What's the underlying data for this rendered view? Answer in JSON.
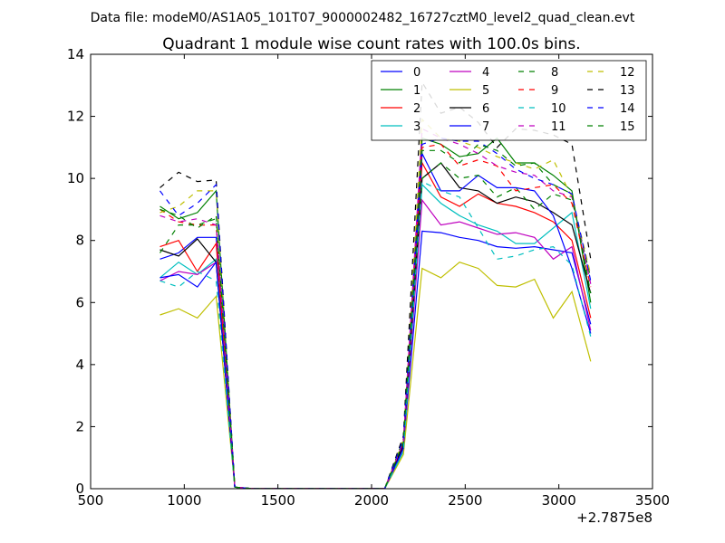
{
  "chart_data": {
    "type": "line",
    "suptitle": "Data file: modeM0/AS1A05_101T07_9000002482_16727cztM0_level2_quad_clean.evt",
    "title": "Quadrant 1 module wise count rates with 100.0s bins.",
    "xlabel": "",
    "ylabel": "",
    "x_offset_label": "+2.7875e8",
    "xlim": [
      500,
      3500
    ],
    "ylim": [
      0,
      14
    ],
    "xticks": [
      500,
      1000,
      1500,
      2000,
      2500,
      3000,
      3500
    ],
    "yticks": [
      0,
      2,
      4,
      6,
      8,
      10,
      12,
      14
    ],
    "grid": false,
    "legend_position": "top-right",
    "legend_columns": 4,
    "x": [
      870,
      970,
      1070,
      1170,
      1270,
      1370,
      1470,
      1570,
      1670,
      1770,
      1870,
      1970,
      2070,
      2170,
      2270,
      2370,
      2470,
      2570,
      2670,
      2770,
      2870,
      2970,
      3070,
      3170
    ],
    "series": [
      {
        "name": "0",
        "color": "#0000ff",
        "style": "solid",
        "values": [
          7.4,
          7.6,
          8.1,
          8.1,
          0.05,
          0,
          0,
          0,
          0,
          0,
          0,
          0,
          0,
          1.3,
          8.3,
          8.25,
          8.1,
          8.0,
          7.8,
          7.75,
          7.8,
          7.7,
          7.6,
          5.3
        ]
      },
      {
        "name": "1",
        "color": "#008000",
        "style": "solid",
        "values": [
          9.1,
          8.7,
          8.9,
          9.6,
          0.05,
          0,
          0,
          0,
          0,
          0,
          0,
          0,
          0,
          1.4,
          11.3,
          11.1,
          10.7,
          10.8,
          11.3,
          10.5,
          10.5,
          10.1,
          9.6,
          6.0
        ]
      },
      {
        "name": "2",
        "color": "#ff0000",
        "style": "solid",
        "values": [
          7.8,
          8.0,
          7.0,
          7.9,
          0.05,
          0,
          0,
          0,
          0,
          0,
          0,
          0,
          0,
          1.5,
          10.5,
          9.4,
          9.1,
          9.5,
          9.2,
          9.1,
          8.9,
          8.6,
          8.0,
          5.5
        ]
      },
      {
        "name": "3",
        "color": "#00bfbf",
        "style": "solid",
        "values": [
          6.8,
          7.3,
          6.9,
          7.4,
          0.05,
          0,
          0,
          0,
          0,
          0,
          0,
          0,
          0,
          1.2,
          9.8,
          9.2,
          8.8,
          8.5,
          8.3,
          7.9,
          7.9,
          8.4,
          8.9,
          5.8
        ]
      },
      {
        "name": "4",
        "color": "#bf00bf",
        "style": "solid",
        "values": [
          6.7,
          7.0,
          6.9,
          7.3,
          0.05,
          0,
          0,
          0,
          0,
          0,
          0,
          0,
          0,
          1.3,
          9.3,
          8.5,
          8.6,
          8.4,
          8.2,
          8.25,
          8.1,
          7.4,
          7.8,
          5.1
        ]
      },
      {
        "name": "5",
        "color": "#bfbf00",
        "style": "solid",
        "values": [
          5.6,
          5.8,
          5.5,
          6.2,
          0.05,
          0,
          0,
          0,
          0,
          0,
          0,
          0,
          0,
          1.1,
          7.1,
          6.8,
          7.3,
          7.1,
          6.55,
          6.5,
          6.75,
          5.5,
          6.35,
          4.1
        ]
      },
      {
        "name": "6",
        "color": "#000000",
        "style": "solid",
        "values": [
          7.7,
          7.5,
          8.05,
          7.3,
          0.05,
          0,
          0,
          0,
          0,
          0,
          0,
          0,
          0,
          1.4,
          10.0,
          10.5,
          9.7,
          9.6,
          9.2,
          9.4,
          9.25,
          8.9,
          8.5,
          6.3
        ]
      },
      {
        "name": "7",
        "color": "#0000ff",
        "style": "solid",
        "values": [
          6.8,
          6.9,
          6.5,
          7.3,
          0.05,
          0,
          0,
          0,
          0,
          0,
          0,
          0,
          0,
          1.3,
          10.8,
          9.6,
          9.6,
          10.1,
          9.7,
          9.7,
          9.6,
          8.8,
          7.1,
          5.0
        ]
      },
      {
        "name": "8",
        "color": "#008000",
        "style": "dashed",
        "values": [
          7.6,
          8.5,
          8.5,
          8.7,
          0.05,
          0,
          0,
          0,
          0,
          0,
          0,
          0,
          0,
          1.6,
          10.0,
          10.5,
          10.0,
          10.1,
          9.4,
          9.7,
          9.0,
          9.5,
          9.3,
          6.8
        ]
      },
      {
        "name": "9",
        "color": "#ff0000",
        "style": "dashed",
        "values": [
          9.0,
          8.6,
          8.5,
          8.5,
          0.05,
          0,
          0,
          0,
          0,
          0,
          0,
          0,
          0,
          1.5,
          11.0,
          11.1,
          10.4,
          10.6,
          10.4,
          9.6,
          9.7,
          9.8,
          9.2,
          6.5
        ]
      },
      {
        "name": "10",
        "color": "#00bfbf",
        "style": "dashed",
        "values": [
          6.7,
          6.5,
          7.0,
          6.7,
          0.05,
          0,
          0,
          0,
          0,
          0,
          0,
          0,
          0,
          1.2,
          9.9,
          9.6,
          9.4,
          8.4,
          7.4,
          7.5,
          7.7,
          7.8,
          7.2,
          4.9
        ]
      },
      {
        "name": "11",
        "color": "#bf00bf",
        "style": "dashed",
        "values": [
          8.8,
          8.6,
          8.7,
          8.5,
          0.05,
          0,
          0,
          0,
          0,
          0,
          0,
          0,
          0,
          1.5,
          11.6,
          11.3,
          11.1,
          10.8,
          10.4,
          10.2,
          10.1,
          9.6,
          9.4,
          6.6
        ]
      },
      {
        "name": "12",
        "color": "#bfbf00",
        "style": "dashed",
        "values": [
          8.9,
          9.1,
          9.6,
          9.6,
          0.05,
          0,
          0,
          0,
          0,
          0,
          0,
          0,
          0,
          1.6,
          11.9,
          11.3,
          11.2,
          11.0,
          10.7,
          10.5,
          10.3,
          10.6,
          9.4,
          6.9
        ]
      },
      {
        "name": "13",
        "color": "#000000",
        "style": "dashed",
        "values": [
          9.7,
          10.2,
          9.9,
          9.95,
          0.05,
          0,
          0,
          0,
          0,
          0,
          0,
          0,
          0,
          1.7,
          13.1,
          12.1,
          12.3,
          11.8,
          11.0,
          11.6,
          11.55,
          11.4,
          11.1,
          7.4
        ]
      },
      {
        "name": "14",
        "color": "#0000ff",
        "style": "dashed",
        "values": [
          9.6,
          8.8,
          9.2,
          9.8,
          0.05,
          0,
          0,
          0,
          0,
          0,
          0,
          0,
          0,
          1.6,
          11.1,
          11.3,
          11.2,
          11.2,
          10.8,
          10.3,
          10.0,
          9.8,
          9.5,
          6.7
        ]
      },
      {
        "name": "15",
        "color": "#008000",
        "style": "dashed",
        "values": [
          9.0,
          8.8,
          8.4,
          8.8,
          0.05,
          0,
          0,
          0,
          0,
          0,
          0,
          0,
          0,
          1.5,
          10.9,
          10.9,
          10.5,
          11.1,
          10.9,
          10.4,
          10.5,
          9.8,
          9.5,
          6.3
        ]
      }
    ]
  }
}
